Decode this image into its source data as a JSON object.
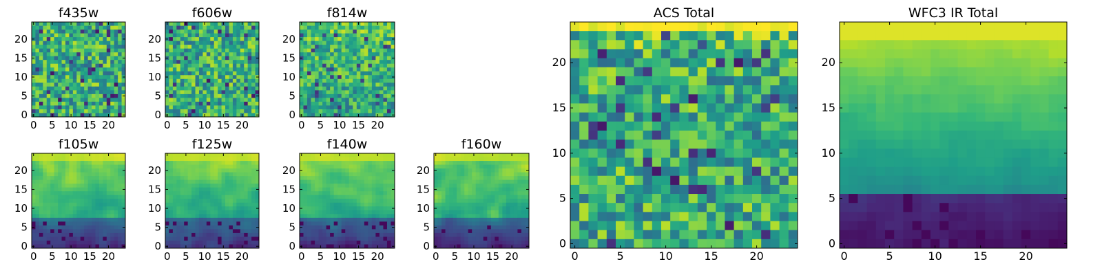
{
  "chart_data": [
    {
      "type": "heatmap",
      "title": "f435w",
      "xticks": [
        "0",
        "5",
        "10",
        "15",
        "20"
      ],
      "yticks": [
        "0",
        "5",
        "10",
        "15",
        "20"
      ],
      "xlim": [
        -0.5,
        24.5
      ],
      "ylim": [
        -0.5,
        24.5
      ],
      "grid_size": [
        25,
        25
      ],
      "colormap": "viridis",
      "pattern": "uniform noise"
    },
    {
      "type": "heatmap",
      "title": "f606w",
      "xticks": [
        "0",
        "5",
        "10",
        "15",
        "20"
      ],
      "yticks": [
        "0",
        "5",
        "10",
        "15",
        "20"
      ],
      "xlim": [
        -0.5,
        24.5
      ],
      "ylim": [
        -0.5,
        24.5
      ],
      "grid_size": [
        25,
        25
      ],
      "colormap": "viridis",
      "pattern": "uniform noise"
    },
    {
      "type": "heatmap",
      "title": "f814w",
      "xticks": [
        "0",
        "5",
        "10",
        "15",
        "20"
      ],
      "yticks": [
        "0",
        "5",
        "10",
        "15",
        "20"
      ],
      "xlim": [
        -0.5,
        24.5
      ],
      "ylim": [
        -0.5,
        24.5
      ],
      "grid_size": [
        25,
        25
      ],
      "colormap": "viridis",
      "pattern": "noise, brighter toward top"
    },
    {
      "type": "heatmap",
      "title": "f105w",
      "xticks": [
        "0",
        "5",
        "10",
        "15",
        "20"
      ],
      "yticks": [
        "0",
        "5",
        "10",
        "15",
        "20"
      ],
      "xlim": [
        -0.5,
        24.5
      ],
      "ylim": [
        -0.5,
        24.5
      ],
      "grid_size": [
        25,
        25
      ],
      "colormap": "viridis",
      "pattern": "bright top, dark bottom rows"
    },
    {
      "type": "heatmap",
      "title": "f125w",
      "xticks": [
        "0",
        "5",
        "10",
        "15",
        "20"
      ],
      "yticks": [
        "0",
        "5",
        "10",
        "15",
        "20"
      ],
      "xlim": [
        -0.5,
        24.5
      ],
      "ylim": [
        -0.5,
        24.5
      ],
      "grid_size": [
        25,
        25
      ],
      "colormap": "viridis",
      "pattern": "bright top, dark bottom rows"
    },
    {
      "type": "heatmap",
      "title": "f140w",
      "xticks": [
        "0",
        "5",
        "10",
        "15",
        "20"
      ],
      "yticks": [
        "0",
        "5",
        "10",
        "15",
        "20"
      ],
      "xlim": [
        -0.5,
        24.5
      ],
      "ylim": [
        -0.5,
        24.5
      ],
      "grid_size": [
        25,
        25
      ],
      "colormap": "viridis",
      "pattern": "bright top, dark bottom rows"
    },
    {
      "type": "heatmap",
      "title": "f160w",
      "xticks": [
        "0",
        "5",
        "10",
        "15",
        "20"
      ],
      "yticks": [
        "0",
        "5",
        "10",
        "15",
        "20"
      ],
      "xlim": [
        -0.5,
        24.5
      ],
      "ylim": [
        -0.5,
        24.5
      ],
      "grid_size": [
        25,
        25
      ],
      "colormap": "viridis",
      "pattern": "bright top, dark bottom rows"
    },
    {
      "type": "heatmap",
      "title": "ACS Total",
      "xticks": [
        "0",
        "5",
        "10",
        "15",
        "20"
      ],
      "yticks": [
        "0",
        "5",
        "10",
        "15",
        "20"
      ],
      "xlim": [
        -0.5,
        24.5
      ],
      "ylim": [
        -0.5,
        24.5
      ],
      "grid_size": [
        25,
        25
      ],
      "colormap": "viridis",
      "pattern": "noise, bright yellow top row"
    },
    {
      "type": "heatmap",
      "title": "WFC3 IR Total",
      "xticks": [
        "0",
        "5",
        "10",
        "15",
        "20"
      ],
      "yticks": [
        "0",
        "5",
        "10",
        "15",
        "20"
      ],
      "xlim": [
        -0.5,
        24.5
      ],
      "ylim": [
        -0.5,
        24.5
      ],
      "grid_size": [
        25,
        25
      ],
      "colormap": "viridis",
      "pattern": "vertical gradient: yellow top to dark purple bottom"
    }
  ],
  "colors": {
    "viridis_low": "#440154",
    "viridis_mid": "#21918c",
    "viridis_high": "#fde725"
  }
}
